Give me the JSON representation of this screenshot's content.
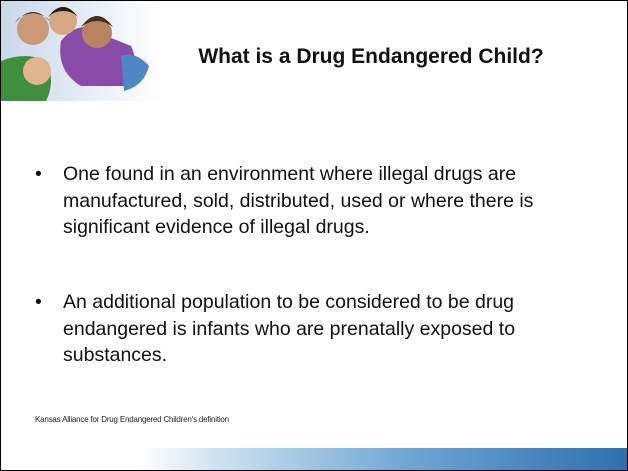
{
  "header": {
    "title": "What is a Drug Endangered Child?"
  },
  "bullets": [
    "One found in an environment where illegal drugs are manufactured, sold, distributed, used or where there is significant evidence of illegal drugs.",
    "An additional population to be considered to be drug endangered is infants who are prenatally exposed to substances."
  ],
  "footnote": "Kansas Alliance for Drug Endangered Children’s definition"
}
